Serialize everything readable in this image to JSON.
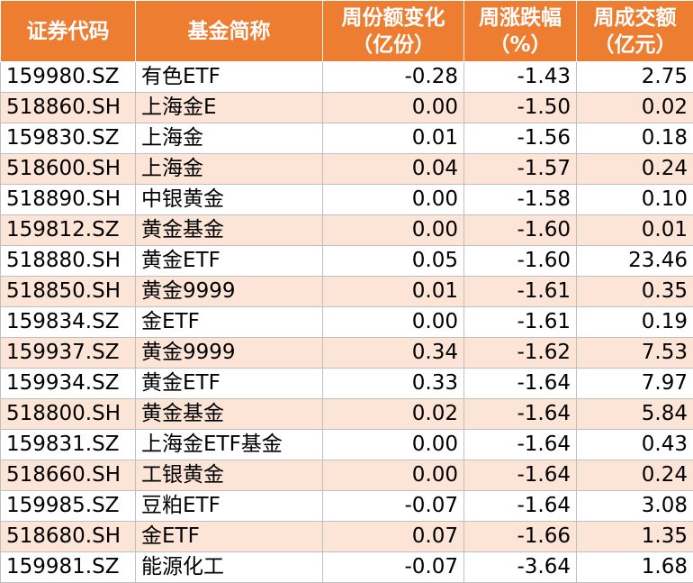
{
  "table": {
    "header": [
      [
        "证券代码"
      ],
      [
        "基金简称"
      ],
      [
        "周份额变化",
        "（亿份）"
      ],
      [
        "周涨跌幅",
        "（%）"
      ],
      [
        "周成交额",
        "（亿元）"
      ]
    ],
    "rows": [
      [
        "159980.SZ",
        "有色ETF",
        "-0.28",
        "-1.43",
        "2.75"
      ],
      [
        "518860.SH",
        "上海金E",
        "0.00",
        "-1.50",
        "0.02"
      ],
      [
        "159830.SZ",
        "上海金",
        "0.01",
        "-1.56",
        "0.18"
      ],
      [
        "518600.SH",
        "上海金",
        "0.04",
        "-1.57",
        "0.24"
      ],
      [
        "518890.SH",
        "中银黄金",
        "0.00",
        "-1.58",
        "0.10"
      ],
      [
        "159812.SZ",
        "黄金基金",
        "0.00",
        "-1.60",
        "0.01"
      ],
      [
        "518880.SH",
        "黄金ETF",
        "0.05",
        "-1.60",
        "23.46"
      ],
      [
        "518850.SH",
        "黄金9999",
        "0.01",
        "-1.61",
        "0.35"
      ],
      [
        "159834.SZ",
        "金ETF",
        "0.00",
        "-1.61",
        "0.19"
      ],
      [
        "159937.SZ",
        "黄金9999",
        "0.34",
        "-1.62",
        "7.53"
      ],
      [
        "159934.SZ",
        "黄金ETF",
        "0.33",
        "-1.64",
        "7.97"
      ],
      [
        "518800.SH",
        "黄金基金",
        "0.02",
        "-1.64",
        "5.84"
      ],
      [
        "159831.SZ",
        "上海金ETF基金",
        "0.00",
        "-1.64",
        "0.43"
      ],
      [
        "518660.SH",
        "工银黄金",
        "0.00",
        "-1.64",
        "0.24"
      ],
      [
        "159985.SZ",
        "豆粕ETF",
        "-0.07",
        "-1.64",
        "3.08"
      ],
      [
        "518680.SH",
        "金ETF",
        "0.07",
        "-1.66",
        "1.35"
      ],
      [
        "159981.SZ",
        "能源化工",
        "-0.07",
        "-3.64",
        "1.68"
      ]
    ]
  }
}
